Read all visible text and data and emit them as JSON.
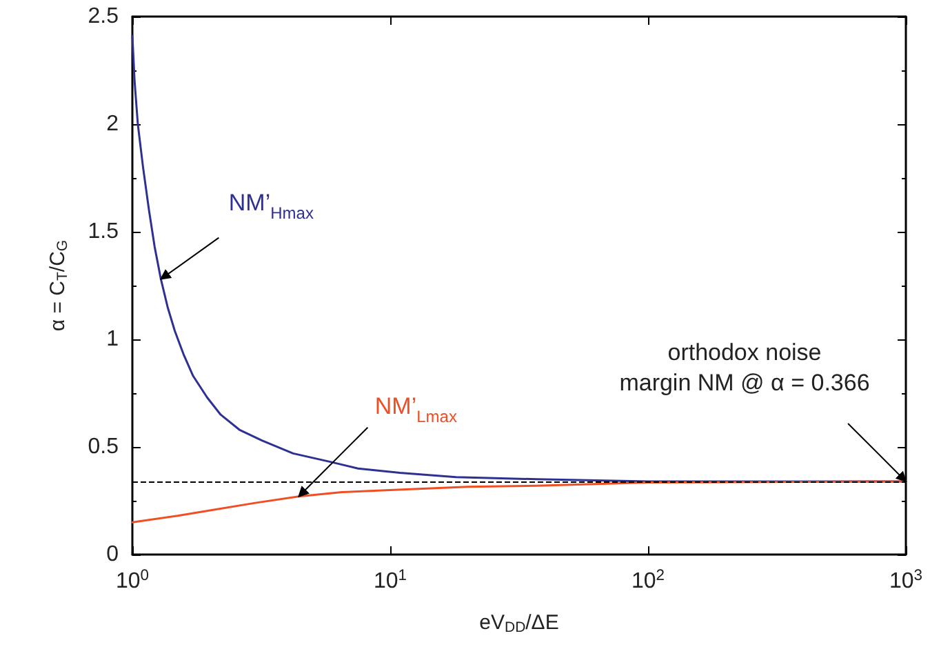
{
  "chart_data": {
    "type": "line",
    "xlabel": "eV$_{DD}$/ΔE",
    "ylabel": "α = C$_{T}$/C$_{G}$",
    "log": "x",
    "xlim": [
      1,
      1000
    ],
    "xticks": [
      {
        "value": 1,
        "label": "10$^{0}$"
      },
      {
        "value": 10,
        "label": "10$^{1}$"
      },
      {
        "value": 100,
        "label": "10$^{2}$"
      },
      {
        "value": 1000,
        "label": "10$^{3}$"
      }
    ],
    "ylim": [
      0,
      2.5
    ],
    "yticks": [
      0,
      0.5,
      1,
      1.5,
      2,
      2.5
    ],
    "marker": "none",
    "line_style": "solid",
    "series": [
      {
        "color": "#2e3192",
        "x": [
          1,
          1.02,
          1.05,
          1.1,
          1.16,
          1.22,
          1.29,
          1.37,
          1.46,
          1.58,
          1.72,
          1.95,
          2.2,
          2.6,
          3.18,
          4.2,
          5.9,
          7.5,
          10.9,
          18,
          37,
          100,
          1000
        ],
        "values": [
          2.41,
          2.2,
          2.0,
          1.8,
          1.6,
          1.43,
          1.28,
          1.15,
          1.04,
          0.93,
          0.83,
          0.73,
          0.65,
          0.58,
          0.53,
          0.47,
          0.43,
          0.4,
          0.38,
          0.36,
          0.35,
          0.34,
          0.34
        ]
      },
      {
        "color": "#f04e23",
        "x": [
          1,
          1.5,
          2,
          3,
          4.42,
          6.5,
          10,
          20,
          37,
          100,
          1000
        ],
        "values": [
          0.15,
          0.18,
          0.205,
          0.24,
          0.27,
          0.29,
          0.3,
          0.315,
          0.32,
          0.335,
          0.34
        ]
      }
    ],
    "ref_lines": [
      {
        "axis": "y",
        "value": 0.34,
        "color": "#000000",
        "line_style": "dashed"
      }
    ],
    "annotations": [
      {
        "text": "NM’$_{Hmax}$",
        "x": 1.29,
        "y": 1.28
      },
      {
        "text": "NM’$_{Lmax}$",
        "x": 4.42,
        "y": 0.27
      },
      {
        "text": "orthodox noise\nmargin NM @ α = 0.366",
        "x": 1000,
        "y": 0.34
      }
    ]
  }
}
